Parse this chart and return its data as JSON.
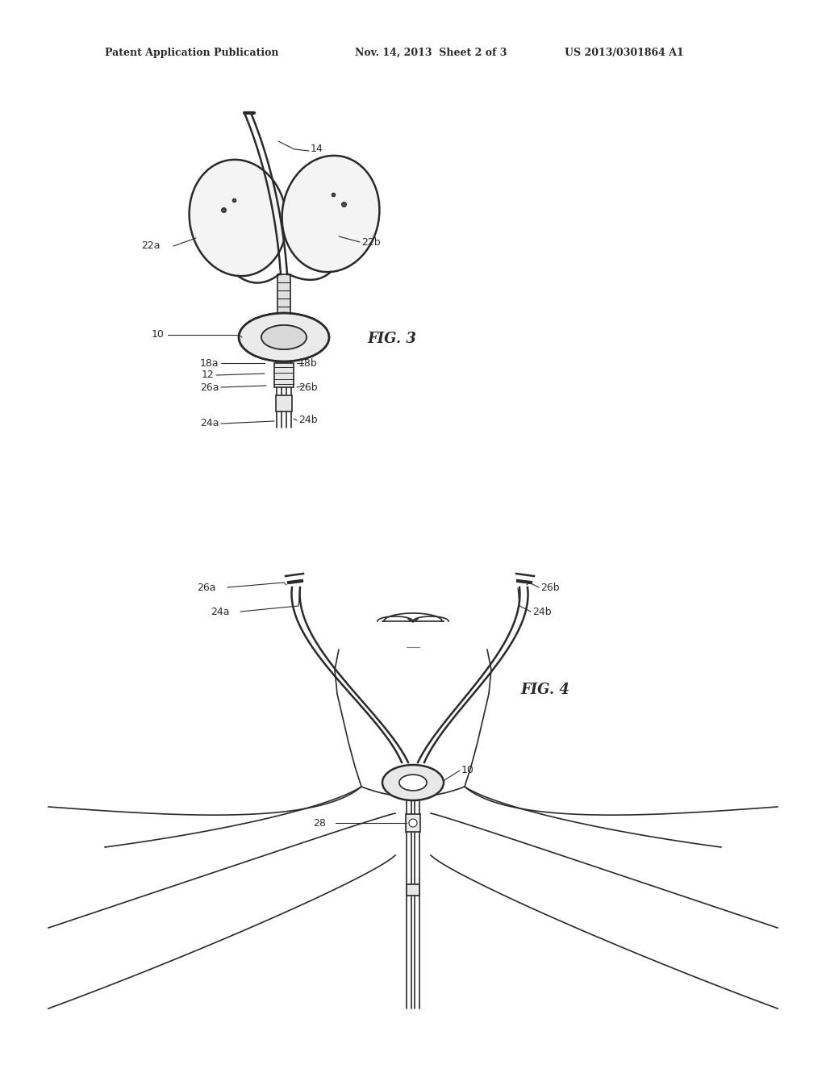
{
  "bg_color": "#ffffff",
  "line_color": "#2a2a2a",
  "header_left": "Patent Application Publication",
  "header_mid": "Nov. 14, 2013  Sheet 2 of 3",
  "header_right": "US 2013/0301864 A1",
  "fig3_label": "FIG. 3",
  "fig4_label": "FIG. 4"
}
